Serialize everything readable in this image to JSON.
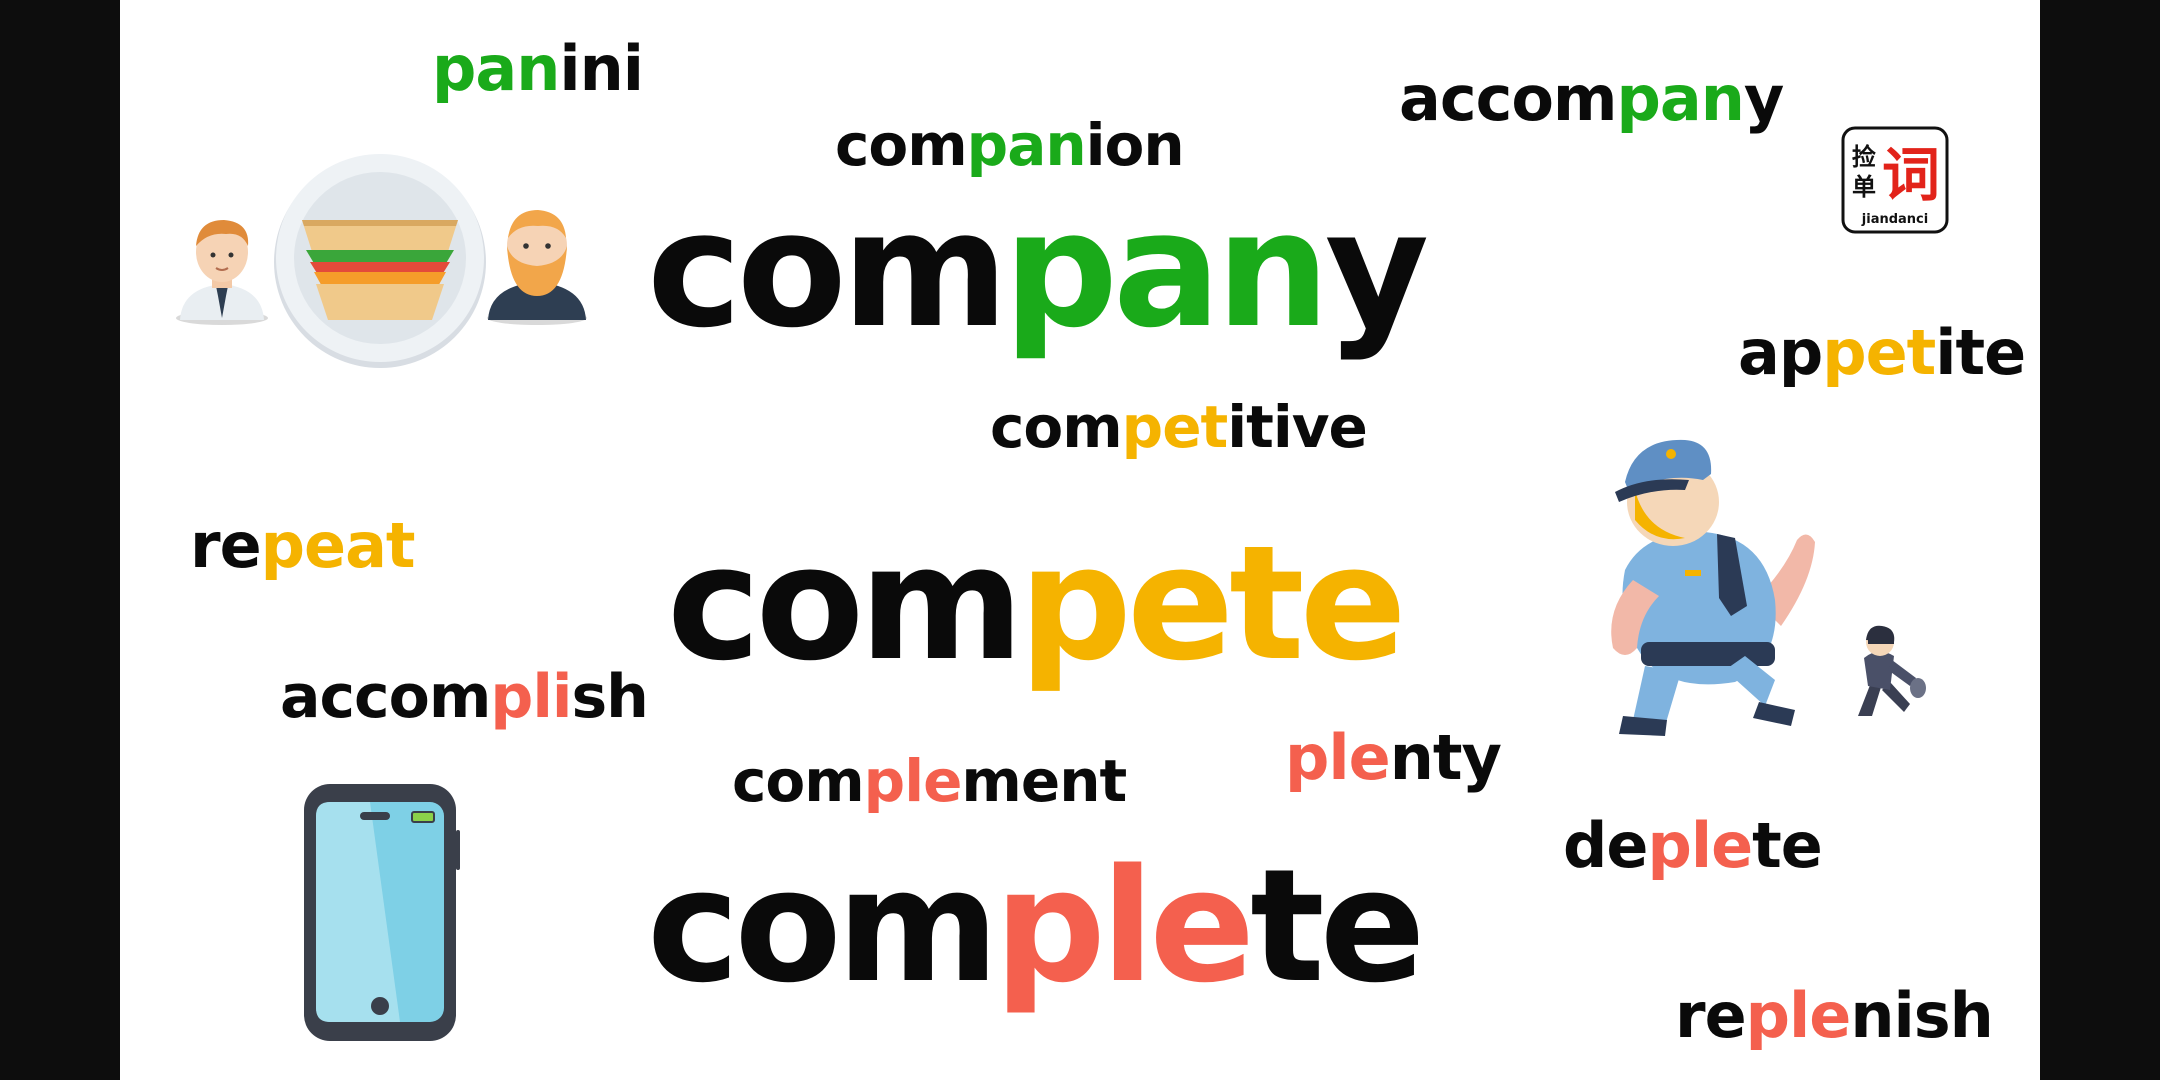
{
  "colors": {
    "black": "#0a0a0a",
    "green": "#1aaa1a",
    "yellow": "#f5b300",
    "coral": "#f4604e",
    "logo_red": "#e2231a"
  },
  "logo": {
    "glyph_1": "捡",
    "glyph_2": "单",
    "glyph_3": "词",
    "label": "jiandanci"
  },
  "words": {
    "panini": {
      "parts": [
        {
          "t": "pan",
          "c": "green"
        },
        {
          "t": "ini",
          "c": "black"
        }
      ]
    },
    "companion": {
      "parts": [
        {
          "t": "com",
          "c": "black"
        },
        {
          "t": "pan",
          "c": "green"
        },
        {
          "t": "ion",
          "c": "black"
        }
      ]
    },
    "accompany": {
      "parts": [
        {
          "t": "accom",
          "c": "black"
        },
        {
          "t": "pan",
          "c": "green"
        },
        {
          "t": "y",
          "c": "black"
        }
      ]
    },
    "company": {
      "parts": [
        {
          "t": "com",
          "c": "black"
        },
        {
          "t": "pan",
          "c": "green"
        },
        {
          "t": "y",
          "c": "black"
        }
      ]
    },
    "appetite": {
      "parts": [
        {
          "t": "ap",
          "c": "black"
        },
        {
          "t": "pet",
          "c": "yellow"
        },
        {
          "t": "ite",
          "c": "black"
        }
      ]
    },
    "competitive": {
      "parts": [
        {
          "t": "com",
          "c": "black"
        },
        {
          "t": "pet",
          "c": "yellow"
        },
        {
          "t": "itive",
          "c": "black"
        }
      ]
    },
    "repeat": {
      "parts": [
        {
          "t": "re",
          "c": "black"
        },
        {
          "t": "peat",
          "c": "yellow"
        }
      ]
    },
    "compete": {
      "parts": [
        {
          "t": "com",
          "c": "black"
        },
        {
          "t": "pete",
          "c": "yellow"
        }
      ]
    },
    "accomplish": {
      "parts": [
        {
          "t": "accom",
          "c": "black"
        },
        {
          "t": "pli",
          "c": "coral"
        },
        {
          "t": "sh",
          "c": "black"
        }
      ]
    },
    "plenty": {
      "parts": [
        {
          "t": "ple",
          "c": "coral"
        },
        {
          "t": "nty",
          "c": "black"
        }
      ]
    },
    "complement": {
      "parts": [
        {
          "t": "com",
          "c": "black"
        },
        {
          "t": "ple",
          "c": "coral"
        },
        {
          "t": "ment",
          "c": "black"
        }
      ]
    },
    "deplete": {
      "parts": [
        {
          "t": "de",
          "c": "black"
        },
        {
          "t": "ple",
          "c": "coral"
        },
        {
          "t": "te",
          "c": "black"
        }
      ]
    },
    "complete": {
      "parts": [
        {
          "t": "com",
          "c": "black"
        },
        {
          "t": "ple",
          "c": "coral"
        },
        {
          "t": "te",
          "c": "black"
        }
      ]
    },
    "replenish": {
      "parts": [
        {
          "t": "re",
          "c": "black"
        },
        {
          "t": "ple",
          "c": "coral"
        },
        {
          "t": "nish",
          "c": "black"
        }
      ]
    }
  },
  "icons": {
    "sandwich": "sandwich-plate-icon",
    "person_left": "man-tie-icon",
    "person_right": "bearded-man-icon",
    "police": "police-officer-chasing-icon",
    "thief": "running-thief-icon",
    "phone": "smartphone-icon"
  }
}
